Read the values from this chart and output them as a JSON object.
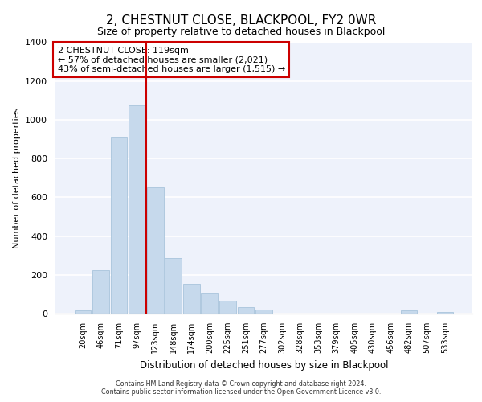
{
  "title1": "2, CHESTNUT CLOSE, BLACKPOOL, FY2 0WR",
  "title2": "Size of property relative to detached houses in Blackpool",
  "xlabel": "Distribution of detached houses by size in Blackpool",
  "ylabel": "Number of detached properties",
  "bar_color": "#c6d9ec",
  "bar_edge_color": "#a8c4dc",
  "categories": [
    "20sqm",
    "46sqm",
    "71sqm",
    "97sqm",
    "123sqm",
    "148sqm",
    "174sqm",
    "200sqm",
    "225sqm",
    "251sqm",
    "277sqm",
    "302sqm",
    "328sqm",
    "353sqm",
    "379sqm",
    "405sqm",
    "430sqm",
    "456sqm",
    "482sqm",
    "507sqm",
    "533sqm"
  ],
  "values": [
    15,
    225,
    910,
    1075,
    650,
    285,
    155,
    105,
    65,
    35,
    20,
    0,
    0,
    0,
    0,
    0,
    0,
    0,
    15,
    0,
    10
  ],
  "ylim": [
    0,
    1400
  ],
  "yticks": [
    0,
    200,
    400,
    600,
    800,
    1000,
    1200,
    1400
  ],
  "property_line_x": 4.0,
  "annotation_line1": "2 CHESTNUT CLOSE: 119sqm",
  "annotation_line2": "← 57% of detached houses are smaller (2,021)",
  "annotation_line3": "43% of semi-detached houses are larger (1,515) →",
  "redline_color": "#cc0000",
  "annotation_box_color": "#ffffff",
  "annotation_box_edge": "#cc0000",
  "footer1": "Contains HM Land Registry data © Crown copyright and database right 2024.",
  "footer2": "Contains public sector information licensed under the Open Government Licence v3.0.",
  "background_color": "#eef2fb",
  "grid_color": "#ffffff",
  "spine_color": "#aaaaaa"
}
